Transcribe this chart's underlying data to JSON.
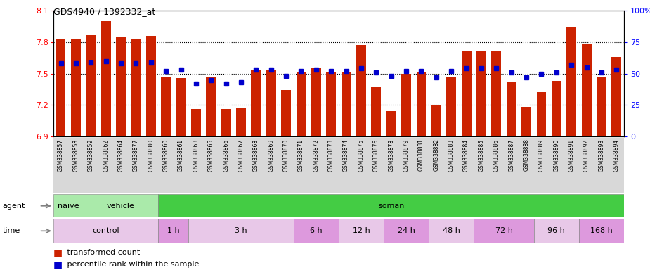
{
  "title": "GDS4940 / 1392332_at",
  "samples": [
    "GSM338857",
    "GSM338858",
    "GSM338859",
    "GSM338862",
    "GSM338864",
    "GSM338877",
    "GSM338880",
    "GSM338860",
    "GSM338861",
    "GSM338863",
    "GSM338865",
    "GSM338866",
    "GSM338867",
    "GSM338868",
    "GSM338869",
    "GSM338870",
    "GSM338871",
    "GSM338872",
    "GSM338873",
    "GSM338874",
    "GSM338875",
    "GSM338876",
    "GSM338878",
    "GSM338879",
    "GSM338881",
    "GSM338882",
    "GSM338883",
    "GSM338884",
    "GSM338885",
    "GSM338886",
    "GSM338887",
    "GSM338888",
    "GSM338889",
    "GSM338890",
    "GSM338891",
    "GSM338892",
    "GSM338893",
    "GSM338894"
  ],
  "bar_values": [
    7.83,
    7.83,
    7.87,
    8.0,
    7.85,
    7.83,
    7.86,
    7.47,
    7.46,
    7.16,
    7.47,
    7.16,
    7.17,
    7.53,
    7.53,
    7.34,
    7.52,
    7.55,
    7.52,
    7.52,
    7.77,
    7.37,
    7.14,
    7.5,
    7.52,
    7.2,
    7.47,
    7.72,
    7.72,
    7.72,
    7.42,
    7.18,
    7.32,
    7.43,
    7.95,
    7.78,
    7.47,
    7.66
  ],
  "percentile_values": [
    58,
    58,
    59,
    60,
    58,
    58,
    59,
    52,
    53,
    42,
    45,
    42,
    43,
    53,
    53,
    48,
    52,
    53,
    52,
    52,
    54,
    51,
    48,
    52,
    52,
    47,
    52,
    54,
    54,
    54,
    51,
    47,
    50,
    51,
    57,
    55,
    51,
    53
  ],
  "ylim_left": [
    6.9,
    8.1
  ],
  "ylim_right": [
    0,
    100
  ],
  "yticks_left": [
    6.9,
    7.2,
    7.5,
    7.8,
    8.1
  ],
  "yticks_right": [
    0,
    25,
    50,
    75,
    100
  ],
  "bar_color": "#cc2200",
  "percentile_color": "#0000cc",
  "xlbl_bg": "#d8d8d8",
  "agent_groups": [
    {
      "label": "naive",
      "start": 0,
      "end": 2,
      "color": "#aaeaaa"
    },
    {
      "label": "vehicle",
      "start": 2,
      "end": 7,
      "color": "#aaeaaa"
    },
    {
      "label": "soman",
      "start": 7,
      "end": 38,
      "color": "#44cc44"
    }
  ],
  "time_groups": [
    {
      "label": "control",
      "start": 0,
      "end": 7,
      "color": "#e8c8e8"
    },
    {
      "label": "1 h",
      "start": 7,
      "end": 9,
      "color": "#dd99dd"
    },
    {
      "label": "3 h",
      "start": 9,
      "end": 16,
      "color": "#e8c8e8"
    },
    {
      "label": "6 h",
      "start": 16,
      "end": 19,
      "color": "#dd99dd"
    },
    {
      "label": "12 h",
      "start": 19,
      "end": 22,
      "color": "#e8c8e8"
    },
    {
      "label": "24 h",
      "start": 22,
      "end": 25,
      "color": "#dd99dd"
    },
    {
      "label": "48 h",
      "start": 25,
      "end": 28,
      "color": "#e8c8e8"
    },
    {
      "label": "72 h",
      "start": 28,
      "end": 32,
      "color": "#dd99dd"
    },
    {
      "label": "96 h",
      "start": 32,
      "end": 35,
      "color": "#e8c8e8"
    },
    {
      "label": "168 h",
      "start": 35,
      "end": 38,
      "color": "#dd99dd"
    }
  ]
}
